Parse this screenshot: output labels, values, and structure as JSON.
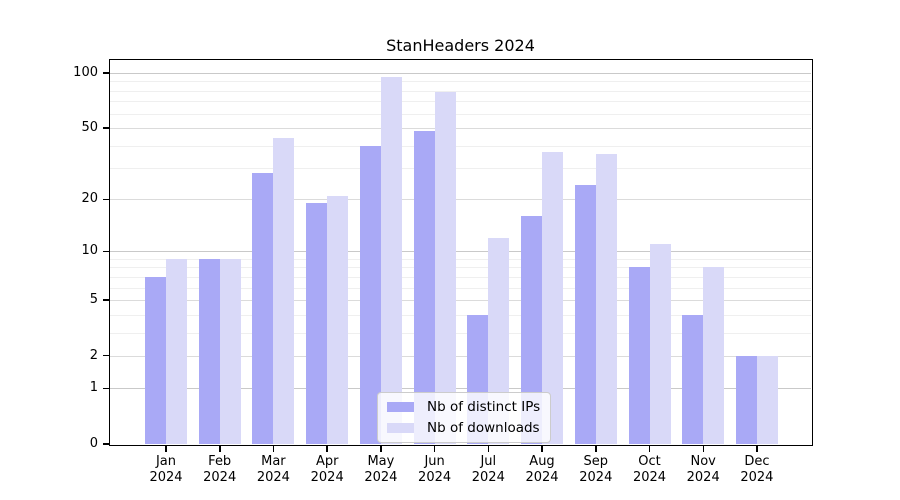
{
  "chart_data": {
    "type": "bar",
    "title": "StanHeaders 2024",
    "months": [
      "Jan",
      "Feb",
      "Mar",
      "Apr",
      "May",
      "Jun",
      "Jul",
      "Aug",
      "Sep",
      "Oct",
      "Nov",
      "Dec"
    ],
    "year_label": "2024",
    "categories": [
      "Jan 2024",
      "Feb 2024",
      "Mar 2024",
      "Apr 2024",
      "May 2024",
      "Jun 2024",
      "Jul 2024",
      "Aug 2024",
      "Sep 2024",
      "Oct 2024",
      "Nov 2024",
      "Dec 2024"
    ],
    "series": [
      {
        "name": "Nb of distinct IPs",
        "color": "#a9a9f6",
        "values": [
          7,
          9,
          28,
          19,
          40,
          48,
          4,
          16,
          24,
          8,
          4,
          2
        ]
      },
      {
        "name": "Nb of downloads",
        "color": "#d9d9f8",
        "values": [
          9,
          9,
          44,
          21,
          95,
          79,
          12,
          37,
          36,
          11,
          8,
          2
        ]
      }
    ],
    "yscale": "log1p",
    "ylabel": "",
    "xlabel": "",
    "ylim": [
      0,
      118
    ],
    "y_tick_values": [
      0,
      1,
      2,
      5,
      10,
      20,
      50,
      100
    ],
    "y_minor_gridlines": [
      3,
      4,
      6,
      7,
      8,
      9,
      30,
      40,
      60,
      70,
      80,
      90
    ],
    "grid": true,
    "legend_position": "lower center",
    "colors": {
      "axis": "#000000",
      "grid_decade": "#c9c9c9",
      "grid_major": "#dbdbdb",
      "grid_minor": "#efefef",
      "background": "#ffffff"
    }
  }
}
